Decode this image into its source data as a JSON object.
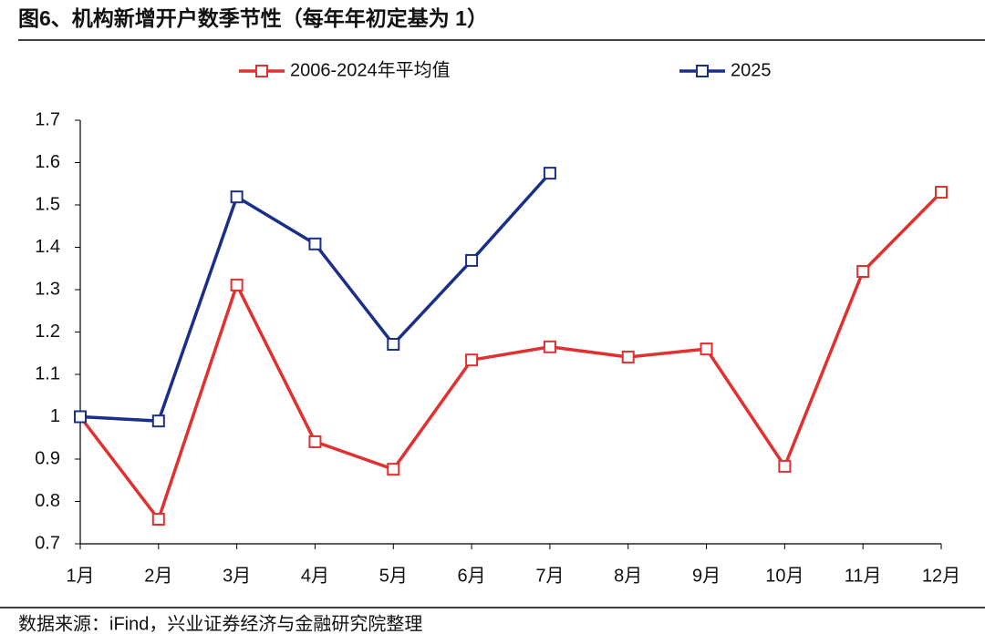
{
  "chart_data": {
    "type": "line",
    "title": "图6、机构新增开户数季节性（每年年初定基为 1）",
    "source": "数据来源：iFind，兴业证券经济与金融研究院整理",
    "categories": [
      "1月",
      "2月",
      "3月",
      "4月",
      "5月",
      "6月",
      "7月",
      "8月",
      "9月",
      "10月",
      "11月",
      "12月"
    ],
    "series": [
      {
        "name": "2006-2024年平均值",
        "color": "#e03030",
        "values": [
          1.0,
          0.758,
          1.311,
          0.941,
          0.876,
          1.134,
          1.165,
          1.141,
          1.16,
          0.883,
          1.343,
          1.53
        ]
      },
      {
        "name": "2025",
        "color": "#1a2f8a",
        "values": [
          1.0,
          0.99,
          1.519,
          1.408,
          1.171,
          1.369,
          1.575,
          null,
          null,
          null,
          null,
          null
        ]
      }
    ],
    "ylim": [
      0.7,
      1.7
    ],
    "yticks": [
      0.7,
      0.8,
      0.9,
      1,
      1.1,
      1.2,
      1.3,
      1.4,
      1.5,
      1.6,
      1.7
    ],
    "grid": false,
    "legend": "top"
  }
}
